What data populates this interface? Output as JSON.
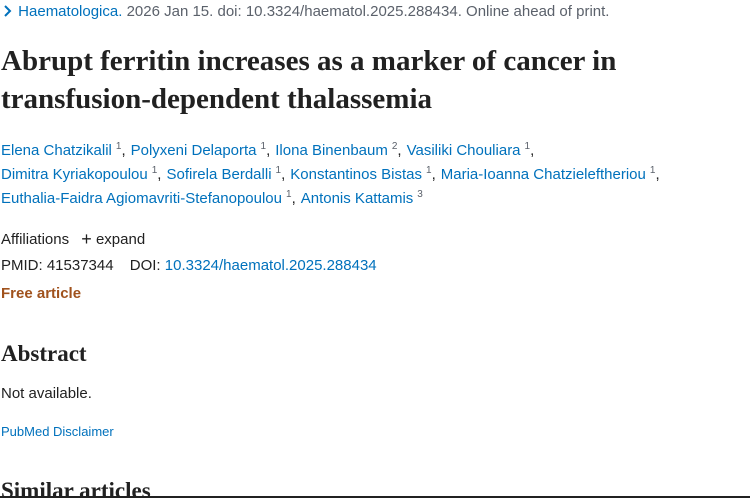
{
  "citation": {
    "journal": "Haematologica.",
    "details": "2026 Jan 15. doi: 10.3324/haematol.2025.288434. Online ahead of print."
  },
  "title": "Abrupt ferritin increases as a marker of cancer in transfusion-dependent thalassemia",
  "authors": {
    "separator": ",",
    "list": [
      {
        "name": "Elena Chatzikalil",
        "aff": "1"
      },
      {
        "name": "Polyxeni Delaporta",
        "aff": "1"
      },
      {
        "name": "Ilona Binenbaum",
        "aff": "2"
      },
      {
        "name": "Vasiliki Chouliara",
        "aff": "1"
      },
      {
        "name": "Dimitra Kyriakopoulou",
        "aff": "1"
      },
      {
        "name": "Sofirela Berdalli",
        "aff": "1"
      },
      {
        "name": "Konstantinos Bistas",
        "aff": "1"
      },
      {
        "name": "Maria-Ioanna Chatzieleftheriou",
        "aff": "1"
      },
      {
        "name": "Euthalia-Faidra Agiomavriti-Stefanopoulou",
        "aff": "1"
      },
      {
        "name": "Antonis Kattamis",
        "aff": "3"
      }
    ]
  },
  "affiliations": {
    "label": "Affiliations",
    "toggle": "expand"
  },
  "identifiers": {
    "pmid_label": "PMID:",
    "pmid": "41537344",
    "doi_label": "DOI:",
    "doi": "10.3324/haematol.2025.288434"
  },
  "free_article": "Free article",
  "abstract": {
    "heading": "Abstract",
    "text": "Not available."
  },
  "disclaimer": "PubMed Disclaimer",
  "similar": {
    "heading": "Similar articles"
  }
}
